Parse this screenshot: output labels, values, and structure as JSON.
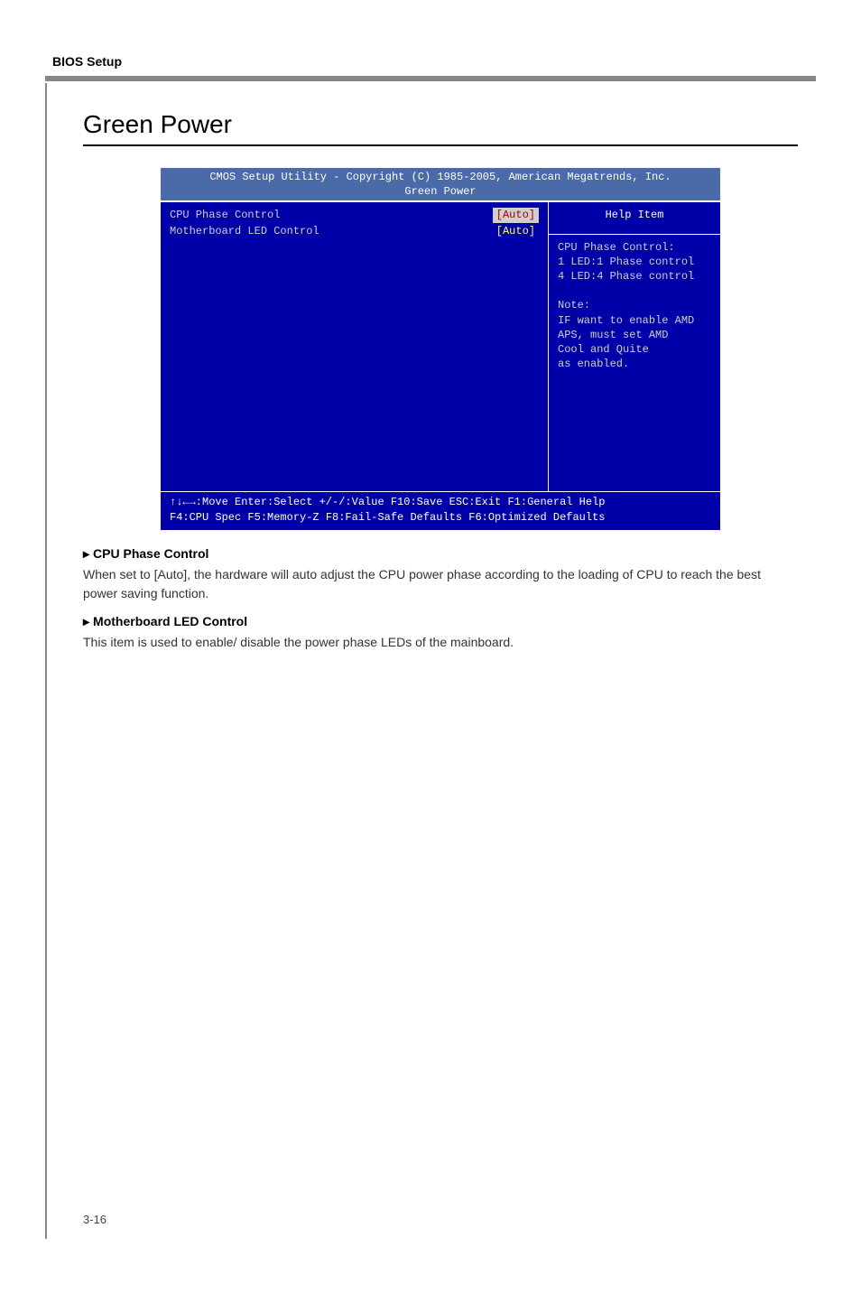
{
  "section_header": "BIOS Setup",
  "page_title": "Green Power",
  "bios": {
    "titlebar_line1": "CMOS Setup Utility - Copyright (C) 1985-2005, American Megatrends, Inc.",
    "titlebar_line2": "Green Power",
    "settings": [
      {
        "label": "CPU Phase Control",
        "value": "[Auto]",
        "selected": true
      },
      {
        "label": "Motherboard LED Control",
        "value": "[Auto]",
        "selected": false
      }
    ],
    "help_title": "Help Item",
    "help_text": "CPU Phase Control:\n1 LED:1 Phase control\n4 LED:4 Phase control\n\nNote:\nIF want to enable AMD\nAPS, must set AMD\nCool and Quite\nas enabled.",
    "footer_line1": "↑↓←→:Move  Enter:Select  +/-/:Value  F10:Save  ESC:Exit  F1:General Help",
    "footer_line2": "F4:CPU Spec  F5:Memory-Z  F8:Fail-Safe Defaults    F6:Optimized Defaults",
    "colors": {
      "background": "#0000a8",
      "titlebar_bg": "#4a6aa8",
      "text": "#ffffff",
      "muted_text": "#cfcfcf",
      "value_text": "#ffff55",
      "selected_bg": "#cfcfcf",
      "selected_fg": "#a00000"
    }
  },
  "items": [
    {
      "heading": "CPU Phase Control",
      "text": "When set to [Auto], the hardware will auto adjust the CPU power phase according to the loading of CPU to reach the best power saving function."
    },
    {
      "heading": "Motherboard LED Control",
      "text": "This item is used to enable/ disable the power phase LEDs of the mainboard."
    }
  ],
  "marker": "▸",
  "page_number": "3-16"
}
